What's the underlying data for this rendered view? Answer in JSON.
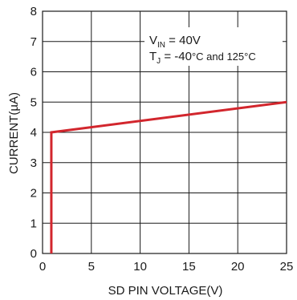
{
  "chart_data": {
    "type": "line",
    "xlabel": "SD PIN VOLTAGE(V)",
    "ylabel": "CURRENT(µA)",
    "xlim": [
      0,
      25
    ],
    "ylim": [
      0,
      8
    ],
    "xticks": [
      0,
      5,
      10,
      15,
      20,
      25
    ],
    "yticks": [
      0,
      1,
      2,
      3,
      4,
      5,
      6,
      7,
      8
    ],
    "grid": true,
    "series": [
      {
        "color": "#d2262d",
        "x": [
          0.9,
          0.9,
          25
        ],
        "y": [
          0,
          4.0,
          5.0
        ]
      }
    ],
    "annotations": {
      "vin": {
        "main": "V",
        "sub": "IN",
        "rest": " = 40V"
      },
      "tj": {
        "main": "T",
        "sub": "J",
        "rest1": " = -40",
        "rest2": "°C and 125°C"
      }
    }
  }
}
